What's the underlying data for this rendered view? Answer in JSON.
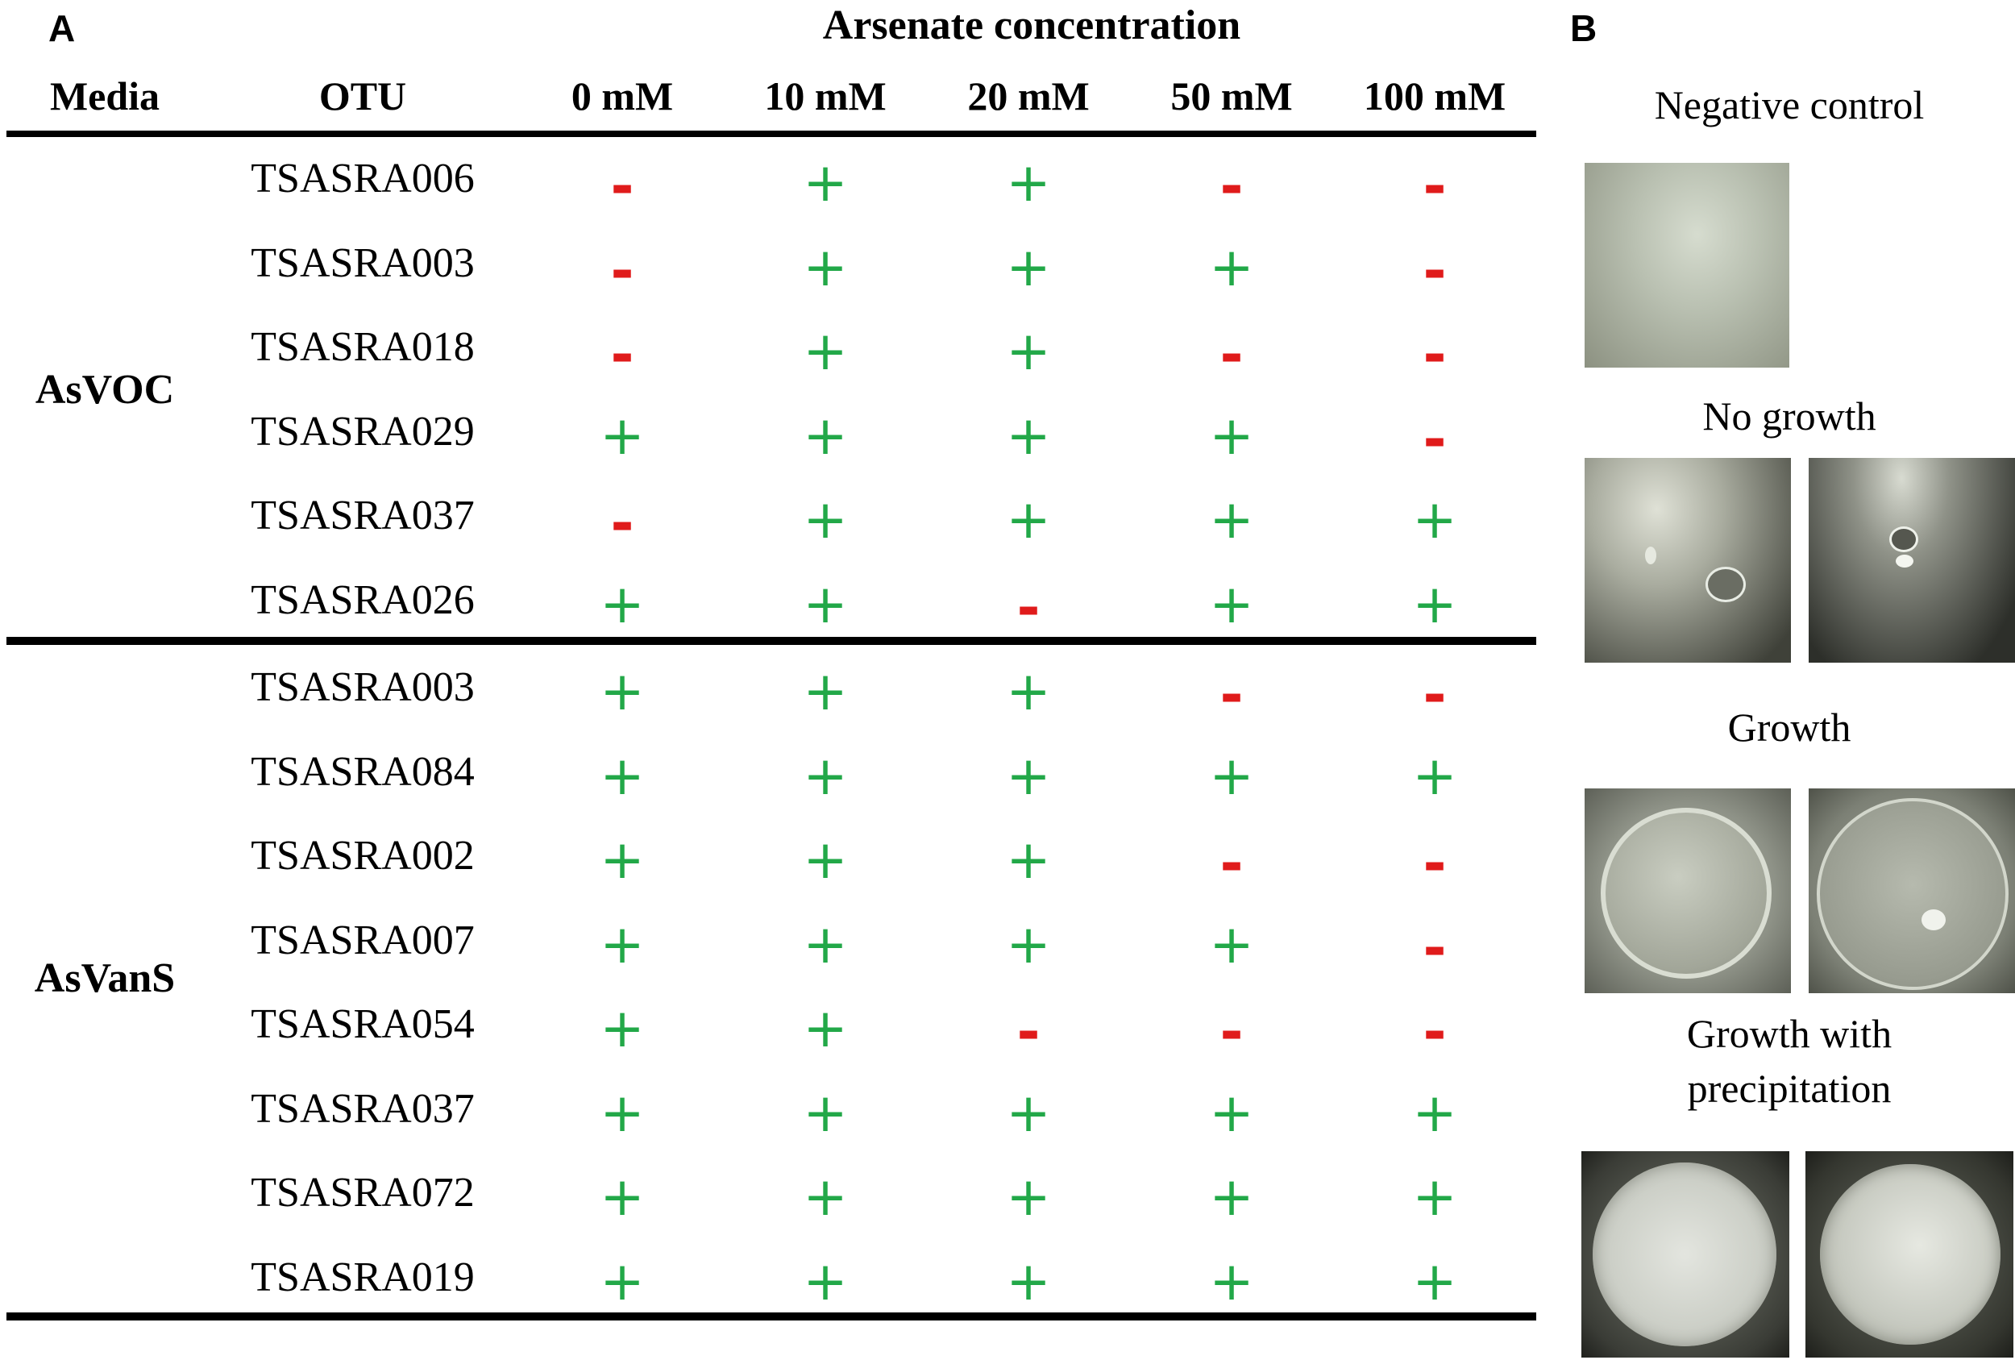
{
  "panel_a_label": "A",
  "panel_b_label": "B",
  "table": {
    "concentration_title": "Arsenate concentration",
    "headers": {
      "media": "Media",
      "otu": "OTU",
      "concentrations": [
        "0 mM",
        "10 mM",
        "20 mM",
        "50 mM",
        "100 mM"
      ]
    },
    "groups": [
      {
        "media": "AsVOC",
        "rows": [
          {
            "otu": "TSASRA006",
            "results": [
              "-",
              "+",
              "+",
              "-",
              "-"
            ]
          },
          {
            "otu": "TSASRA003",
            "results": [
              "-",
              "+",
              "+",
              "+",
              "-"
            ]
          },
          {
            "otu": "TSASRA018",
            "results": [
              "-",
              "+",
              "+",
              "-",
              "-"
            ]
          },
          {
            "otu": "TSASRA029",
            "results": [
              "+",
              "+",
              "+",
              "+",
              "-"
            ]
          },
          {
            "otu": "TSASRA037",
            "results": [
              "-",
              "+",
              "+",
              "+",
              "+"
            ]
          },
          {
            "otu": "TSASRA026",
            "results": [
              "+",
              "+",
              "-",
              "+",
              "+"
            ]
          }
        ]
      },
      {
        "media": "AsVanS",
        "rows": [
          {
            "otu": "TSASRA003",
            "results": [
              "+",
              "+",
              "+",
              "-",
              "-"
            ]
          },
          {
            "otu": "TSASRA084",
            "results": [
              "+",
              "+",
              "+",
              "+",
              "+"
            ]
          },
          {
            "otu": "TSASRA002",
            "results": [
              "+",
              "+",
              "+",
              "-",
              "-"
            ]
          },
          {
            "otu": "TSASRA007",
            "results": [
              "+",
              "+",
              "+",
              "+",
              "-"
            ]
          },
          {
            "otu": "TSASRA054",
            "results": [
              "+",
              "+",
              "-",
              "-",
              "-"
            ]
          },
          {
            "otu": "TSASRA037",
            "results": [
              "+",
              "+",
              "+",
              "+",
              "+"
            ]
          },
          {
            "otu": "TSASRA072",
            "results": [
              "+",
              "+",
              "+",
              "+",
              "+"
            ]
          },
          {
            "otu": "TSASRA019",
            "results": [
              "+",
              "+",
              "+",
              "+",
              "+"
            ]
          }
        ]
      }
    ],
    "colors": {
      "plus": "#22a848",
      "minus": "#e01b1b"
    }
  },
  "panel_b": {
    "captions": {
      "negative_control": "Negative control",
      "no_growth": "No growth",
      "growth": "Growth",
      "growth_precip_line1": "Growth with",
      "growth_precip_line2": "precipitation"
    }
  }
}
